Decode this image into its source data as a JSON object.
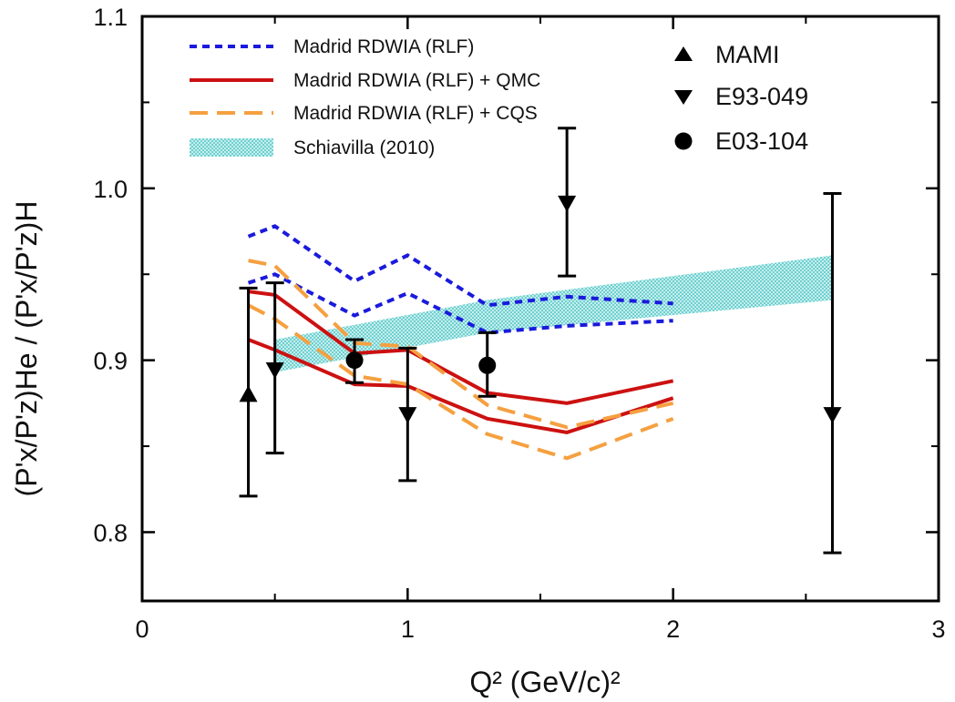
{
  "chart_data": {
    "type": "scatter",
    "xlabel": "Q² (GeV/c)²",
    "ylabel": "(P'x/P'z)He / (P'x/P'z)H",
    "xlim": [
      0,
      3
    ],
    "ylim": [
      0.76,
      1.1
    ],
    "x_ticks": [
      "0",
      "1",
      "2",
      "3"
    ],
    "y_ticks": [
      "0.8",
      "0.9",
      "1.0",
      "1.1"
    ],
    "grid": false,
    "legend_left": [
      "Madrid RDWIA (RLF)",
      "Madrid RDWIA (RLF) + QMC",
      "Madrid RDWIA (RLF) + CQS",
      "Schiavilla (2010)"
    ],
    "legend_right": [
      "MAMI",
      "E93-049",
      "E03-104"
    ],
    "legend_placement": "top",
    "colors": {
      "rdwia": "#1a1adc",
      "qmc": "#cc1111",
      "cqs": "#f5a040",
      "band": "#6fd0d0",
      "data": "#000000"
    },
    "series": [
      {
        "name": "Madrid RDWIA (RLF)",
        "style": "short-dash",
        "upper": [
          [
            0.4,
            0.972
          ],
          [
            0.5,
            0.978
          ],
          [
            0.8,
            0.946
          ],
          [
            1.0,
            0.961
          ],
          [
            1.3,
            0.932
          ],
          [
            1.6,
            0.937
          ],
          [
            2.0,
            0.933
          ]
        ],
        "lower": [
          [
            0.4,
            0.945
          ],
          [
            0.5,
            0.95
          ],
          [
            0.8,
            0.926
          ],
          [
            1.0,
            0.939
          ],
          [
            1.3,
            0.916
          ],
          [
            1.6,
            0.92
          ],
          [
            2.0,
            0.923
          ]
        ]
      },
      {
        "name": "Madrid RDWIA (RLF) + QMC",
        "style": "solid",
        "upper": [
          [
            0.4,
            0.94
          ],
          [
            0.5,
            0.938
          ],
          [
            0.8,
            0.904
          ],
          [
            1.0,
            0.906
          ],
          [
            1.3,
            0.881
          ],
          [
            1.6,
            0.875
          ],
          [
            2.0,
            0.888
          ]
        ],
        "lower": [
          [
            0.4,
            0.912
          ],
          [
            0.5,
            0.906
          ],
          [
            0.8,
            0.886
          ],
          [
            1.0,
            0.885
          ],
          [
            1.3,
            0.866
          ],
          [
            1.6,
            0.858
          ],
          [
            2.0,
            0.878
          ]
        ]
      },
      {
        "name": "Madrid RDWIA (RLF) + CQS",
        "style": "long-dash",
        "upper": [
          [
            0.4,
            0.958
          ],
          [
            0.5,
            0.955
          ],
          [
            0.8,
            0.91
          ],
          [
            1.0,
            0.908
          ],
          [
            1.3,
            0.874
          ],
          [
            1.6,
            0.861
          ],
          [
            2.0,
            0.875
          ]
        ],
        "lower": [
          [
            0.4,
            0.932
          ],
          [
            0.5,
            0.924
          ],
          [
            0.8,
            0.891
          ],
          [
            1.0,
            0.886
          ],
          [
            1.3,
            0.857
          ],
          [
            1.6,
            0.843
          ],
          [
            2.0,
            0.866
          ]
        ]
      },
      {
        "name": "Schiavilla (2010)",
        "style": "band",
        "upper": [
          [
            0.5,
            0.912
          ],
          [
            1.3,
            0.935
          ],
          [
            2.6,
            0.961
          ]
        ],
        "lower": [
          [
            0.5,
            0.893
          ],
          [
            1.3,
            0.916
          ],
          [
            2.6,
            0.935
          ]
        ]
      },
      {
        "name": "MAMI",
        "marker": "triangle-up",
        "points": [
          {
            "x": 0.4,
            "y": 0.88,
            "lo": 0.821,
            "hi": 0.942
          }
        ]
      },
      {
        "name": "E93-049",
        "marker": "triangle-down",
        "points": [
          {
            "x": 0.5,
            "y": 0.894,
            "lo": 0.846,
            "hi": 0.945
          },
          {
            "x": 1.0,
            "y": 0.868,
            "lo": 0.83,
            "hi": 0.907
          },
          {
            "x": 1.6,
            "y": 0.991,
            "lo": 0.949,
            "hi": 1.035
          },
          {
            "x": 2.6,
            "y": 0.868,
            "lo": 0.788,
            "hi": 0.997
          }
        ]
      },
      {
        "name": "E03-104",
        "marker": "circle",
        "points": [
          {
            "x": 0.8,
            "y": 0.9,
            "lo": 0.887,
            "hi": 0.912
          },
          {
            "x": 1.3,
            "y": 0.897,
            "lo": 0.879,
            "hi": 0.916
          }
        ]
      }
    ]
  }
}
